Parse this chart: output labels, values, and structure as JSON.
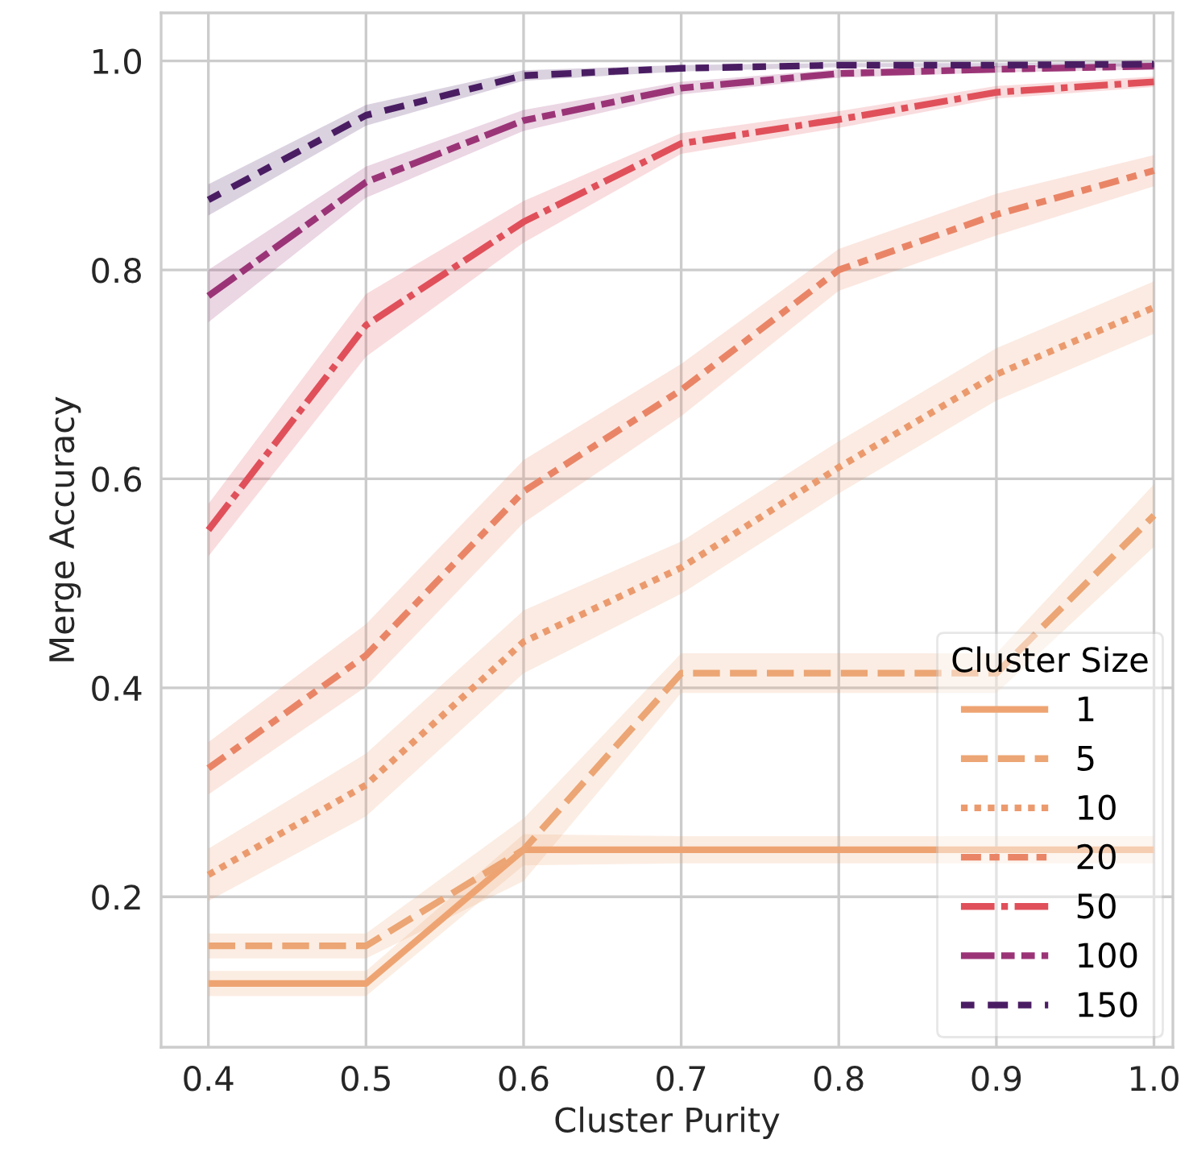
{
  "chart_data": {
    "type": "line",
    "xlabel": "Cluster Purity",
    "ylabel": "Merge Accuracy",
    "legend_title": "Cluster Size",
    "legend": "bottom right",
    "grid": true,
    "x": [
      0.4,
      0.5,
      0.6,
      0.7,
      0.8,
      0.9,
      1.0
    ],
    "xlim": [
      0.37,
      1.012
    ],
    "xticks": [
      0.4,
      0.5,
      0.6,
      0.7,
      0.8,
      0.9,
      {
        "value": 1,
        "label": "1.0"
      }
    ],
    "ylim": [
      0.056,
      1.046
    ],
    "yticks": [
      0.2,
      0.4,
      0.6,
      0.8,
      {
        "value": 1,
        "label": "1.0"
      }
    ],
    "series": [
      {
        "name": "1",
        "color": "#eea472",
        "line_style": "solid",
        "values": [
          0.117,
          0.117,
          0.245,
          0.245,
          0.245,
          0.245,
          0.245
        ],
        "lower": [
          0.105,
          0.105,
          0.23,
          0.232,
          0.232,
          0.232,
          0.232
        ],
        "upper": [
          0.129,
          0.129,
          0.26,
          0.258,
          0.258,
          0.258,
          0.258
        ]
      },
      {
        "name": "5",
        "color": "#eca574",
        "line_style": "dashed",
        "values": [
          0.153,
          0.153,
          0.245,
          0.414,
          0.414,
          0.414,
          0.565
        ],
        "lower": [
          0.141,
          0.141,
          0.215,
          0.395,
          0.395,
          0.395,
          0.535
        ],
        "upper": [
          0.165,
          0.165,
          0.275,
          0.433,
          0.433,
          0.433,
          0.595
        ]
      },
      {
        "name": "10",
        "color": "#eb9a6e",
        "line_style": "dotted",
        "values": [
          0.221,
          0.307,
          0.444,
          0.515,
          0.611,
          0.7,
          0.764
        ],
        "lower": [
          0.196,
          0.277,
          0.414,
          0.49,
          0.586,
          0.675,
          0.739
        ],
        "upper": [
          0.246,
          0.337,
          0.474,
          0.54,
          0.636,
          0.725,
          0.789
        ]
      },
      {
        "name": "20",
        "color": "#e98566",
        "line_style": "dashdot",
        "values": [
          0.323,
          0.431,
          0.588,
          0.685,
          0.8,
          0.853,
          0.895
        ],
        "lower": [
          0.298,
          0.401,
          0.558,
          0.66,
          0.78,
          0.833,
          0.88
        ],
        "upper": [
          0.348,
          0.461,
          0.618,
          0.71,
          0.82,
          0.873,
          0.91
        ]
      },
      {
        "name": "50",
        "color": "#e0505a",
        "line_style": "longdashdot",
        "values": [
          0.551,
          0.747,
          0.846,
          0.921,
          0.944,
          0.97,
          0.98
        ],
        "lower": [
          0.526,
          0.717,
          0.826,
          0.911,
          0.936,
          0.964,
          0.975
        ],
        "upper": [
          0.576,
          0.777,
          0.866,
          0.931,
          0.952,
          0.976,
          0.985
        ]
      },
      {
        "name": "100",
        "color": "#9b3477",
        "line_style": "dashdotdot",
        "values": [
          0.775,
          0.884,
          0.943,
          0.974,
          0.988,
          0.992,
          0.995
        ],
        "lower": [
          0.75,
          0.869,
          0.933,
          0.968,
          0.984,
          0.989,
          0.992
        ],
        "upper": [
          0.8,
          0.899,
          0.953,
          0.98,
          0.992,
          0.995,
          0.998
        ]
      },
      {
        "name": "150",
        "color": "#4a1d63",
        "line_style": "longdash",
        "values": [
          0.867,
          0.948,
          0.986,
          0.993,
          0.996,
          0.996,
          0.997
        ],
        "lower": [
          0.852,
          0.938,
          0.981,
          0.99,
          0.994,
          0.994,
          0.995
        ],
        "upper": [
          0.882,
          0.958,
          0.991,
          0.996,
          0.998,
          0.998,
          0.999
        ]
      }
    ]
  }
}
